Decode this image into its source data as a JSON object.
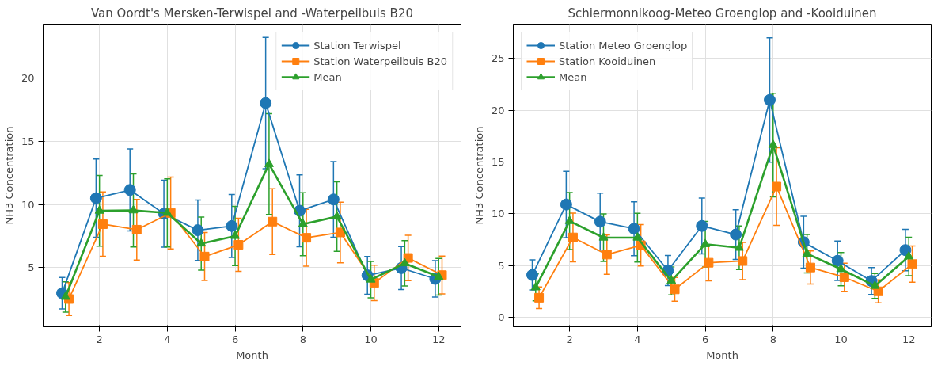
{
  "chart_data": [
    {
      "type": "line",
      "title": "Van Oordt's Mersken-Terwispel and -Waterpeilbuis B20",
      "xlabel": "Month",
      "ylabel": "NH3 Concentration",
      "xlim": [
        0.34,
        12.66
      ],
      "xticks": [
        2,
        4,
        6,
        8,
        10,
        12
      ],
      "ylim": [
        0.3,
        24.3
      ],
      "yticks": [
        5,
        10,
        15,
        20
      ],
      "grid": true,
      "legend": "top right",
      "line_style": "solid",
      "series": [
        {
          "name": "Station Terwispel",
          "color": "#1f77b4",
          "marker": "circle",
          "x": [
            0.9,
            1.9,
            2.9,
            3.9,
            4.9,
            5.9,
            6.9,
            7.9,
            8.9,
            9.9,
            10.9,
            11.9
          ],
          "values": [
            2.96,
            10.5,
            11.15,
            9.27,
            7.96,
            8.29,
            18.04,
            9.5,
            10.4,
            4.38,
            4.96,
            4.1
          ],
          "errors": [
            1.25,
            3.1,
            3.25,
            2.65,
            2.4,
            2.5,
            5.2,
            2.85,
            3.0,
            1.5,
            1.7,
            1.45
          ]
        },
        {
          "name": "Station Waterpeilbuis B20",
          "color": "#ff7f0e",
          "marker": "square",
          "x": [
            1.1,
            2.1,
            3.1,
            4.1,
            5.1,
            6.1,
            7.1,
            8.1,
            9.1,
            10.1,
            11.1,
            12.1
          ],
          "values": [
            2.5,
            8.44,
            8.0,
            9.33,
            5.87,
            6.8,
            8.64,
            7.36,
            7.78,
            3.78,
            5.76,
            4.4
          ],
          "errors": [
            1.3,
            2.55,
            2.4,
            2.85,
            1.9,
            2.1,
            2.6,
            2.25,
            2.4,
            1.4,
            1.8,
            1.5
          ]
        },
        {
          "name": "Mean",
          "color": "#2ca02c",
          "marker": "triangle",
          "x": [
            1,
            2,
            3,
            4,
            5,
            6,
            7,
            8,
            9,
            10,
            11,
            12
          ],
          "values": [
            2.67,
            9.5,
            9.53,
            9.33,
            6.9,
            7.5,
            13.2,
            8.44,
            9.04,
            4.04,
            5.33,
            4.27
          ],
          "errors": [
            1.2,
            2.8,
            2.9,
            2.7,
            2.1,
            2.35,
            4.0,
            2.5,
            2.75,
            1.45,
            1.8,
            1.45
          ]
        }
      ]
    },
    {
      "type": "line",
      "title": "Schiermonnikoog-Meteo Groenglop and -Kooiduinen",
      "xlabel": "Month",
      "ylabel": "NH3 Concentration",
      "xlim": [
        0.34,
        12.66
      ],
      "xticks": [
        2,
        4,
        6,
        8,
        10,
        12
      ],
      "ylim": [
        -0.9,
        28.3
      ],
      "yticks": [
        0,
        5,
        10,
        15,
        20,
        25
      ],
      "grid": true,
      "legend": "top left",
      "line_style": "solid",
      "series": [
        {
          "name": "Station Meteo Groenglop",
          "color": "#1f77b4",
          "marker": "circle",
          "x": [
            0.9,
            1.9,
            2.9,
            3.9,
            4.9,
            5.9,
            6.9,
            7.9,
            8.9,
            9.9,
            10.9,
            11.9
          ],
          "values": [
            4.1,
            10.9,
            9.24,
            8.56,
            4.53,
            8.83,
            8.0,
            20.98,
            7.26,
            5.47,
            3.52,
            6.5
          ],
          "errors": [
            1.45,
            3.2,
            2.75,
            2.6,
            1.45,
            2.7,
            2.4,
            6.0,
            2.5,
            1.9,
            1.3,
            2.0
          ]
        },
        {
          "name": "Station Kooiduinen",
          "color": "#ff7f0e",
          "marker": "square",
          "x": [
            1.1,
            2.1,
            3.1,
            4.1,
            5.1,
            6.1,
            7.1,
            8.1,
            9.1,
            10.1,
            11.1,
            12.1
          ],
          "values": [
            1.9,
            7.72,
            6.07,
            6.96,
            2.71,
            5.28,
            5.45,
            12.63,
            4.82,
            3.88,
            2.52,
            5.15
          ],
          "errors": [
            1.05,
            2.35,
            1.9,
            2.0,
            1.15,
            1.75,
            1.8,
            3.75,
            1.6,
            1.35,
            1.1,
            1.75
          ]
        },
        {
          "name": "Mean",
          "color": "#2ca02c",
          "marker": "triangle",
          "x": [
            1,
            2,
            3,
            4,
            5,
            6,
            7,
            8,
            9,
            10,
            11,
            12
          ],
          "values": [
            2.9,
            9.3,
            7.7,
            7.7,
            3.52,
            7.07,
            6.72,
            16.64,
            6.15,
            4.66,
            3.04,
            5.88
          ],
          "errors": [
            1.3,
            2.75,
            2.3,
            2.35,
            1.35,
            2.2,
            2.1,
            5.0,
            1.85,
            1.6,
            1.2,
            1.85
          ]
        }
      ]
    }
  ]
}
